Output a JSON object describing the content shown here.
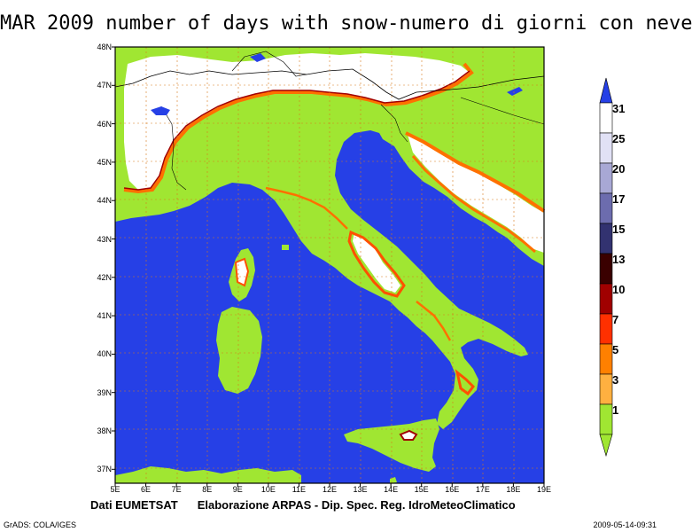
{
  "title": "MAR 2009 number of days with snow-numero di giorni con neve",
  "credits": {
    "left": "Dati EUMETSAT",
    "right": "Elaborazione ARPAS - Dip. Spec. Reg. IdroMeteoClimatico"
  },
  "footer": {
    "left": "GrADS: COLA/IGES",
    "right": "2009-05-14-09:31"
  },
  "axes": {
    "lon_labels": [
      "5E",
      "6E",
      "7E",
      "8E",
      "9E",
      "10E",
      "11E",
      "12E",
      "13E",
      "14E",
      "15E",
      "16E",
      "17E",
      "18E",
      "19E"
    ],
    "lat_labels": [
      "48N",
      "47N",
      "46N",
      "45N",
      "44N",
      "43N",
      "42N",
      "41N",
      "40N",
      "39N",
      "38N",
      "37N"
    ],
    "lon_range": [
      5,
      19
    ],
    "lat_range": [
      36.6,
      48
    ]
  },
  "legend": {
    "labels": [
      "31",
      "25",
      "20",
      "17",
      "15",
      "13",
      "10",
      "7",
      "5",
      "3",
      "1"
    ],
    "colors": [
      "#ffffff",
      "#e1e1f5",
      "#a8a8d5",
      "#6c6cae",
      "#323270",
      "#3a0000",
      "#a00000",
      "#ff3000",
      "#ff8000",
      "#ffb040",
      "#a0e632"
    ]
  },
  "colors": {
    "sea": "#2640e6",
    "land": "#a0e632",
    "snow": "#ffffff",
    "snow_edge": "#ff7000",
    "border": "#000000"
  }
}
